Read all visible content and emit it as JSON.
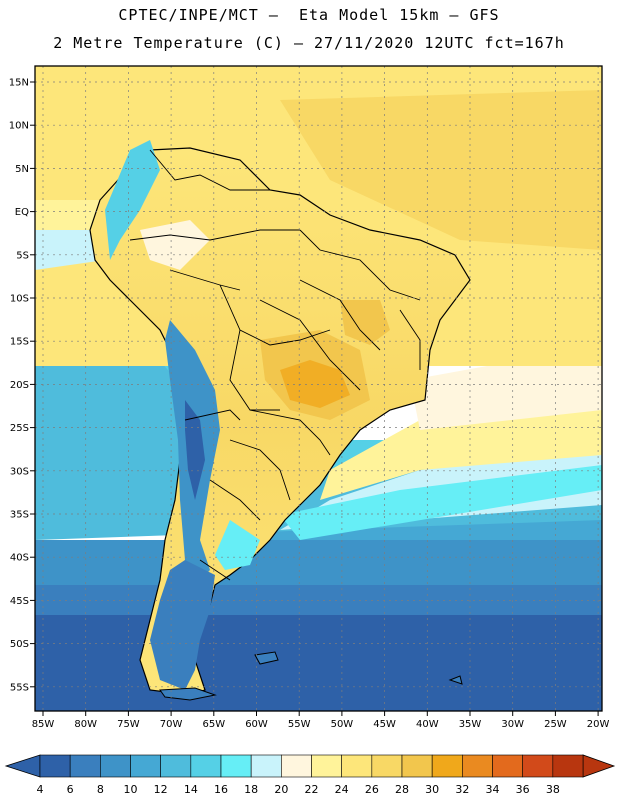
{
  "header": {
    "line1": "CPTEC/INPE/MCT –  Eta Model 15km – GFS",
    "line2": "2 Metre Temperature (C) – 27/11/2020 12UTC fct=167h"
  },
  "map": {
    "lat_labels": [
      "15N",
      "10N",
      "5N",
      "EQ",
      "5S",
      "10S",
      "15S",
      "20S",
      "25S",
      "30S",
      "35S",
      "40S",
      "45S",
      "50S",
      "55S"
    ],
    "lon_labels": [
      "85W",
      "80W",
      "75W",
      "70W",
      "65W",
      "60W",
      "55W",
      "50W",
      "45W",
      "40W",
      "35W",
      "30W",
      "25W",
      "20W"
    ]
  },
  "colorbar": {
    "labels": [
      "4",
      "6",
      "8",
      "10",
      "12",
      "14",
      "16",
      "18",
      "20",
      "22",
      "24",
      "26",
      "28",
      "30",
      "32",
      "34",
      "36",
      "38"
    ],
    "colors": [
      "#2e61a8",
      "#3a7fbe",
      "#3e93c8",
      "#45a8d4",
      "#4fbcdc",
      "#55d0e6",
      "#66eef6",
      "#c9f3fb",
      "#fff6de",
      "#fff39a",
      "#fde67a",
      "#f8d865",
      "#f2c64d",
      "#f0a81b",
      "#ea8a20",
      "#e36a1d",
      "#d24a1a",
      "#b8360f"
    ]
  }
}
